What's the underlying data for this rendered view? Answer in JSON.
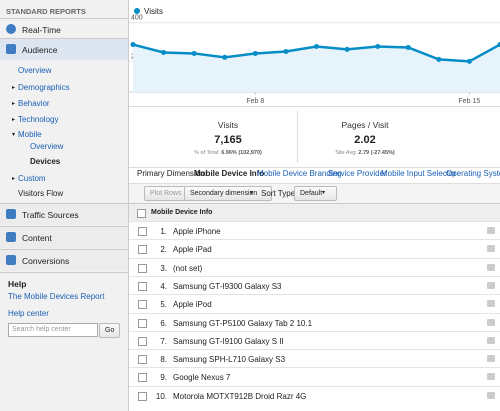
{
  "sidebar": {
    "header": "STANDARD REPORTS",
    "realtime": "Real-Time",
    "audience": "Audience",
    "audience_items": [
      "Overview",
      "Demographics",
      "Behavior",
      "Technology",
      "Mobile"
    ],
    "mobile_items": [
      "Overview",
      "Devices"
    ],
    "more_items": [
      "Custom",
      "Visitors Flow"
    ],
    "sections": [
      "Traffic Sources",
      "Content",
      "Conversions"
    ],
    "help": {
      "title": "Help",
      "link": "The Mobile Devices Report",
      "center": "Help center",
      "search_placeholder": "Search help center",
      "go": "Go"
    }
  },
  "chart": {
    "legend": "Visits",
    "color": "#058dc7",
    "categories": [
      null,
      null,
      null,
      null,
      "Feb 8",
      null,
      null,
      null,
      null,
      null,
      null,
      "Feb 15",
      null
    ],
    "values": [
      287,
      246,
      241,
      221,
      241,
      251,
      277,
      262,
      277,
      272,
      210,
      200,
      287
    ],
    "ylim": [
      0,
      440
    ],
    "yticks": [
      200,
      400
    ]
  },
  "stats": [
    {
      "label": "Visits",
      "value": "7,165",
      "sub_label": "% of Total:",
      "sub_value": "6.96% (102,970)"
    },
    {
      "label": "Pages / Visit",
      "value": "2.02",
      "sub_label": "Site Avg:",
      "sub_value": "2.79 (-27.45%)"
    }
  ],
  "dimensions": {
    "label": "Primary Dimension:",
    "active": "Mobile Device Info",
    "links": [
      "Mobile Device Branding",
      "Service Provider",
      "Mobile Input Selector",
      "Operating System"
    ]
  },
  "controls": {
    "plot_rows": "Plot Rows",
    "secondary": "Secondary dimension",
    "sort_type": "Sort Type:",
    "sort_value": "Default"
  },
  "table": {
    "header": "Mobile Device Info",
    "rows": [
      {
        "num": "1.",
        "name": "Apple iPhone"
      },
      {
        "num": "2.",
        "name": "Apple iPad"
      },
      {
        "num": "3.",
        "name": "(not set)"
      },
      {
        "num": "4.",
        "name": "Samsung GT-I9300 Galaxy S3"
      },
      {
        "num": "5.",
        "name": "Apple iPod"
      },
      {
        "num": "6.",
        "name": "Samsung GT-P5100 Galaxy Tab 2 10.1"
      },
      {
        "num": "7.",
        "name": "Samsung GT-I9100 Galaxy S II"
      },
      {
        "num": "8.",
        "name": "Samsung SPH-L710 Galaxy S3"
      },
      {
        "num": "9.",
        "name": "Google Nexus 7"
      },
      {
        "num": "10.",
        "name": "Motorola MOTXT912B Droid Razr 4G"
      }
    ]
  }
}
